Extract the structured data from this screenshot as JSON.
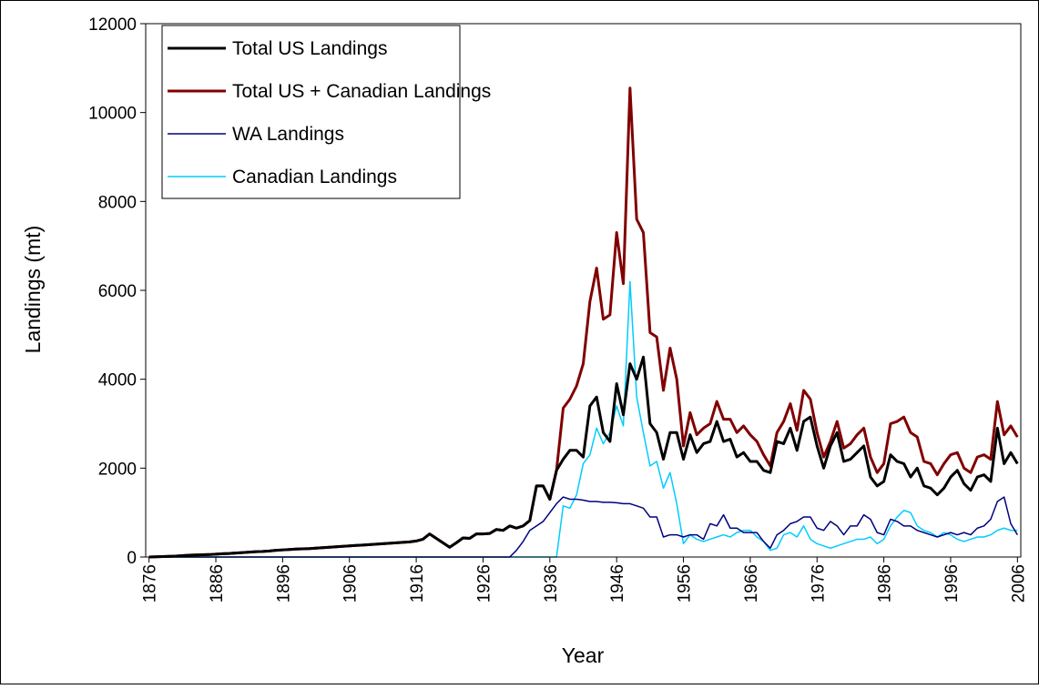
{
  "chart_data": {
    "type": "line",
    "xlabel": "Year",
    "ylabel": "Landings (mt)",
    "x": [
      1876,
      1877,
      1878,
      1879,
      1880,
      1881,
      1882,
      1883,
      1884,
      1885,
      1886,
      1887,
      1888,
      1889,
      1890,
      1891,
      1892,
      1893,
      1894,
      1895,
      1896,
      1897,
      1898,
      1899,
      1900,
      1901,
      1902,
      1903,
      1904,
      1905,
      1906,
      1907,
      1908,
      1909,
      1910,
      1911,
      1912,
      1913,
      1914,
      1915,
      1916,
      1917,
      1918,
      1919,
      1920,
      1921,
      1922,
      1923,
      1924,
      1925,
      1926,
      1927,
      1928,
      1929,
      1930,
      1931,
      1932,
      1933,
      1934,
      1935,
      1936,
      1937,
      1938,
      1939,
      1940,
      1941,
      1942,
      1943,
      1944,
      1945,
      1946,
      1947,
      1948,
      1949,
      1950,
      1951,
      1952,
      1953,
      1954,
      1955,
      1956,
      1957,
      1958,
      1959,
      1960,
      1961,
      1962,
      1963,
      1964,
      1965,
      1966,
      1967,
      1968,
      1969,
      1970,
      1971,
      1972,
      1973,
      1974,
      1975,
      1976,
      1977,
      1978,
      1979,
      1980,
      1981,
      1982,
      1983,
      1984,
      1985,
      1986,
      1987,
      1988,
      1989,
      1990,
      1991,
      1992,
      1993,
      1994,
      1995,
      1996,
      1997,
      1998,
      1999,
      2000,
      2001,
      2002,
      2003,
      2004,
      2005,
      2006
    ],
    "xlim": [
      1875.5,
      2006.5
    ],
    "xticks": [
      1876,
      1886,
      1896,
      1906,
      1916,
      1926,
      1936,
      1946,
      1956,
      1966,
      1976,
      1986,
      1996,
      2006
    ],
    "ylim": [
      0,
      12000
    ],
    "yticks": [
      0,
      2000,
      4000,
      6000,
      8000,
      10000,
      12000
    ],
    "grid": false,
    "legend": "upper left",
    "series": [
      {
        "name": "Total US Landings",
        "color": "#000000",
        "values": [
          0,
          5,
          10,
          15,
          20,
          30,
          40,
          45,
          50,
          55,
          65,
          75,
          80,
          90,
          100,
          110,
          120,
          125,
          135,
          150,
          160,
          170,
          180,
          185,
          190,
          200,
          210,
          220,
          230,
          240,
          250,
          260,
          270,
          280,
          290,
          300,
          310,
          320,
          330,
          340,
          360,
          400,
          520,
          420,
          320,
          220,
          320,
          430,
          420,
          520,
          520,
          530,
          620,
          600,
          700,
          650,
          700,
          820,
          1600,
          1600,
          1300,
          1950,
          2200,
          2400,
          2400,
          2250,
          3400,
          3600,
          2800,
          2600,
          3900,
          3200,
          4350,
          4000,
          4500,
          3000,
          2800,
          2200,
          2800,
          2800,
          2200,
          2750,
          2350,
          2550,
          2600,
          3050,
          2600,
          2650,
          2250,
          2350,
          2150,
          2150,
          1950,
          1900,
          2600,
          2550,
          2900,
          2400,
          3050,
          3150,
          2500,
          2000,
          2500,
          2800,
          2150,
          2200,
          2350,
          2500,
          1800,
          1600,
          1700,
          2300,
          2150,
          2100,
          1800,
          2000,
          1600,
          1550,
          1400,
          1550,
          1800,
          1950,
          1650,
          1500,
          1800,
          1850,
          1700,
          2900,
          2100,
          2350,
          2100
        ]
      },
      {
        "name": "Total US + Canadian Landings",
        "color": "#800000",
        "values": [
          0,
          5,
          10,
          15,
          20,
          30,
          40,
          45,
          50,
          55,
          65,
          75,
          80,
          90,
          100,
          110,
          120,
          125,
          135,
          150,
          160,
          170,
          180,
          185,
          190,
          200,
          210,
          220,
          230,
          240,
          250,
          260,
          270,
          280,
          290,
          300,
          310,
          320,
          330,
          340,
          360,
          400,
          520,
          420,
          320,
          220,
          320,
          430,
          420,
          520,
          520,
          530,
          620,
          600,
          700,
          650,
          700,
          820,
          1600,
          1600,
          1300,
          1950,
          3350,
          3550,
          3850,
          4350,
          5750,
          6500,
          5350,
          5450,
          7300,
          6150,
          10550,
          7600,
          7300,
          5050,
          4950,
          3750,
          4700,
          4000,
          2500,
          3250,
          2750,
          2900,
          3000,
          3500,
          3100,
          3100,
          2800,
          2950,
          2750,
          2600,
          2300,
          2050,
          2800,
          3050,
          3450,
          2850,
          3750,
          3550,
          2800,
          2250,
          2600,
          3050,
          2450,
          2550,
          2750,
          2900,
          2250,
          1900,
          2100,
          3000,
          3050,
          3150,
          2800,
          2700,
          2150,
          2100,
          1850,
          2100,
          2300,
          2350,
          2000,
          1900,
          2250,
          2300,
          2200,
          3500,
          2750,
          2950,
          2700
        ]
      },
      {
        "name": "WA Landings",
        "color": "#000080",
        "values": [
          0,
          0,
          0,
          0,
          0,
          0,
          0,
          0,
          0,
          0,
          0,
          0,
          0,
          0,
          0,
          0,
          0,
          0,
          0,
          0,
          0,
          0,
          0,
          0,
          0,
          0,
          0,
          0,
          0,
          0,
          0,
          0,
          0,
          0,
          0,
          0,
          0,
          0,
          0,
          0,
          0,
          0,
          0,
          0,
          0,
          0,
          0,
          0,
          0,
          0,
          0,
          0,
          0,
          0,
          0,
          150,
          350,
          600,
          700,
          800,
          1000,
          1200,
          1350,
          1300,
          1300,
          1280,
          1250,
          1250,
          1230,
          1230,
          1220,
          1200,
          1200,
          1150,
          1100,
          900,
          900,
          450,
          500,
          500,
          450,
          500,
          500,
          400,
          750,
          700,
          950,
          650,
          650,
          550,
          550,
          550,
          350,
          200,
          500,
          600,
          750,
          800,
          900,
          900,
          650,
          600,
          800,
          700,
          500,
          700,
          700,
          950,
          850,
          550,
          500,
          850,
          800,
          700,
          700,
          600,
          550,
          500,
          450,
          500,
          550,
          500,
          550,
          500,
          650,
          700,
          850,
          1250,
          1350,
          750,
          500
        ]
      },
      {
        "name": "Canadian Landings",
        "color": "#00ccff",
        "values": [
          0,
          0,
          0,
          0,
          0,
          0,
          0,
          0,
          0,
          0,
          0,
          0,
          0,
          0,
          0,
          0,
          0,
          0,
          0,
          0,
          0,
          0,
          0,
          0,
          0,
          0,
          0,
          0,
          0,
          0,
          0,
          0,
          0,
          0,
          0,
          0,
          0,
          0,
          0,
          0,
          0,
          0,
          0,
          0,
          0,
          0,
          0,
          0,
          0,
          0,
          0,
          0,
          0,
          0,
          0,
          0,
          0,
          0,
          0,
          0,
          0,
          0,
          1150,
          1100,
          1400,
          2100,
          2300,
          2900,
          2550,
          2800,
          3400,
          2950,
          6200,
          3600,
          2800,
          2050,
          2150,
          1550,
          1900,
          1200,
          300,
          500,
          400,
          350,
          400,
          450,
          500,
          450,
          550,
          600,
          600,
          450,
          350,
          150,
          200,
          500,
          550,
          450,
          700,
          400,
          300,
          250,
          200,
          250,
          300,
          350,
          400,
          400,
          450,
          300,
          400,
          700,
          900,
          1050,
          1000,
          700,
          600,
          550,
          450,
          550,
          500,
          400,
          350,
          400,
          450,
          450,
          500,
          600,
          650,
          600,
          600
        ]
      }
    ]
  }
}
